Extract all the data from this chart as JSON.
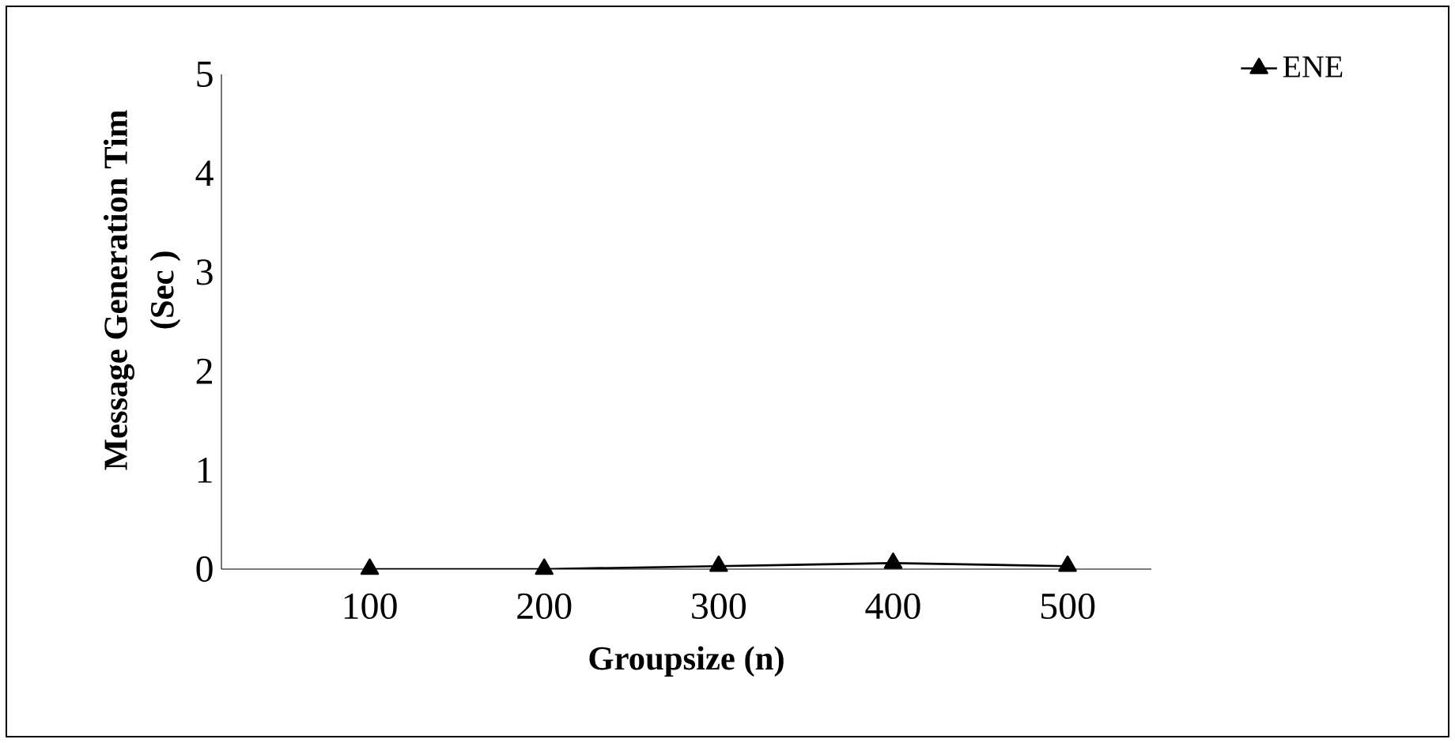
{
  "chart_data": {
    "type": "line",
    "xlabel": "Groupsize (n)",
    "ylabel": "Message Generation Tim\n(Sec )",
    "categories": [
      "100",
      "200",
      "300",
      "400",
      "500"
    ],
    "series": [
      {
        "name": "ENE",
        "color": "#000000",
        "values": [
          0,
          0,
          0.03,
          0.06,
          0.03
        ]
      }
    ],
    "ylim": [
      0,
      5
    ],
    "yticks": [
      0,
      1,
      2,
      3,
      4,
      5
    ],
    "marker": "triangle",
    "line_style": "solid",
    "legend": "top right",
    "grid": false
  }
}
